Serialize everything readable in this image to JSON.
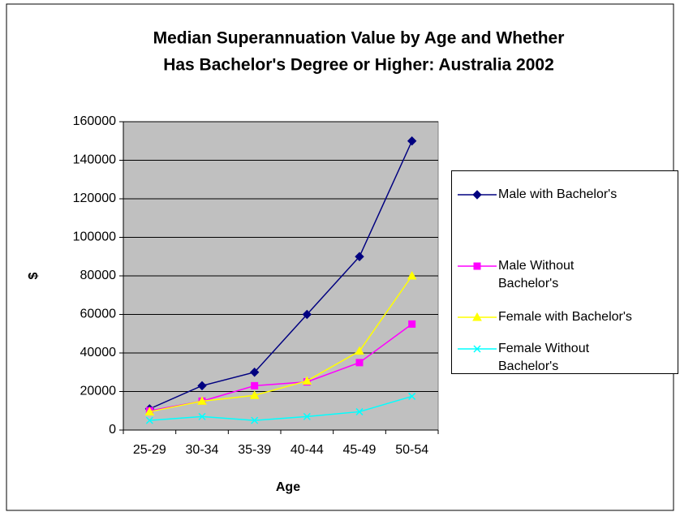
{
  "chart_data": {
    "type": "line",
    "title": [
      "Median Superannuation Value by Age and Whether",
      "Has Bachelor's Degree or Higher: Australia 2002"
    ],
    "x_label": "Age",
    "y_label": "$",
    "categories": [
      "25-29",
      "30-34",
      "35-39",
      "40-44",
      "45-49",
      "50-54"
    ],
    "series": [
      {
        "name": "Male with Bachelor's",
        "color": "#000080",
        "marker": "diamond",
        "values": [
          11000,
          23000,
          30000,
          60000,
          90000,
          150000
        ]
      },
      {
        "name": "Male Without Bachelor's",
        "color": "#ff00ff",
        "marker": "square",
        "values": [
          10000,
          15000,
          23000,
          25000,
          35000,
          55000
        ]
      },
      {
        "name": "Female with Bachelor's",
        "color": "#ffff00",
        "marker": "triangle",
        "values": [
          9500,
          15000,
          18000,
          25500,
          41000,
          80000
        ]
      },
      {
        "name": "Female Without Bachelor's",
        "color": "#00ffff",
        "marker": "x",
        "values": [
          5000,
          7000,
          5000,
          7000,
          9500,
          17500
        ]
      }
    ],
    "ylim": [
      0,
      160000
    ],
    "yticks": [
      0,
      20000,
      40000,
      60000,
      80000,
      100000,
      120000,
      140000,
      160000
    ],
    "grid": true,
    "legend": "right"
  }
}
